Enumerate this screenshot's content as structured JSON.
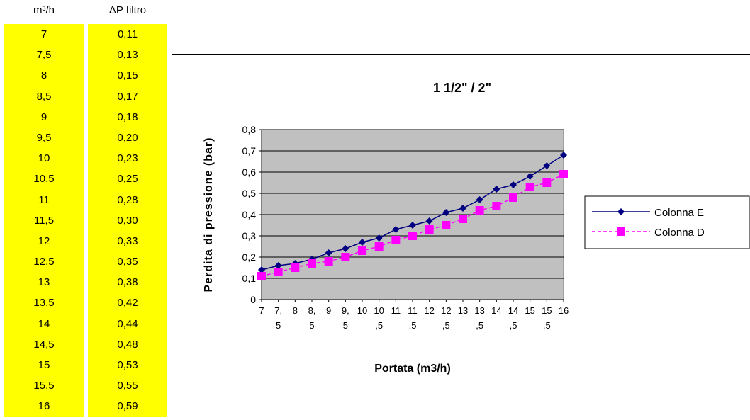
{
  "table": {
    "headers": [
      "m³/h",
      "ΔP filtro"
    ],
    "rows": [
      [
        "7",
        "0,11"
      ],
      [
        "7,5",
        "0,13"
      ],
      [
        "8",
        "0,15"
      ],
      [
        "8,5",
        "0,17"
      ],
      [
        "9",
        "0,18"
      ],
      [
        "9,5",
        "0,20"
      ],
      [
        "10",
        "0,23"
      ],
      [
        "10,5",
        "0,25"
      ],
      [
        "11",
        "0,28"
      ],
      [
        "11,5",
        "0,30"
      ],
      [
        "12",
        "0,33"
      ],
      [
        "12,5",
        "0,35"
      ],
      [
        "13",
        "0,38"
      ],
      [
        "13,5",
        "0,42"
      ],
      [
        "14",
        "0,44"
      ],
      [
        "14,5",
        "0,48"
      ],
      [
        "15",
        "0,53"
      ],
      [
        "15,5",
        "0,55"
      ],
      [
        "16",
        "0,59"
      ]
    ]
  },
  "colors": {
    "cell_bg": "#ffff00",
    "plot_bg": "#c0c0c0",
    "series_e": "#000080",
    "series_d": "#ff00ff"
  },
  "chart_data": {
    "type": "line",
    "title": "1 1/2\" / 2\"",
    "xlabel": "Portata (m3/h)",
    "ylabel": "Perdita di pressione (bar)",
    "ylim": [
      0,
      0.8
    ],
    "yticks": [
      "0",
      "0,1",
      "0,2",
      "0,3",
      "0,4",
      "0,5",
      "0,6",
      "0,7",
      "0,8"
    ],
    "categories": [
      [
        "7"
      ],
      [
        "7,",
        "5"
      ],
      [
        "8"
      ],
      [
        "8,",
        "5"
      ],
      [
        "9"
      ],
      [
        "9,",
        "5"
      ],
      [
        "10"
      ],
      [
        "10",
        ",5"
      ],
      [
        "11"
      ],
      [
        "11",
        ",5"
      ],
      [
        "12"
      ],
      [
        "12",
        ",5"
      ],
      [
        "13"
      ],
      [
        "13",
        ",5"
      ],
      [
        "14"
      ],
      [
        "14",
        ",5"
      ],
      [
        "15"
      ],
      [
        "15",
        ",5"
      ],
      [
        "16"
      ]
    ],
    "x": [
      7,
      7.5,
      8,
      8.5,
      9,
      9.5,
      10,
      10.5,
      11,
      11.5,
      12,
      12.5,
      13,
      13.5,
      14,
      14.5,
      15,
      15.5,
      16
    ],
    "grid": true,
    "legend": "right",
    "series": [
      {
        "name": "Colonna E",
        "marker": "diamond",
        "line": "solid",
        "colorKey": "series_e",
        "values": [
          0.14,
          0.16,
          0.17,
          0.19,
          0.22,
          0.24,
          0.27,
          0.29,
          0.33,
          0.35,
          0.37,
          0.41,
          0.43,
          0.47,
          0.52,
          0.54,
          0.58,
          0.63,
          0.68
        ]
      },
      {
        "name": "Colonna D",
        "marker": "square",
        "line": "dashed",
        "colorKey": "series_d",
        "values": [
          0.11,
          0.13,
          0.15,
          0.17,
          0.18,
          0.2,
          0.23,
          0.25,
          0.28,
          0.3,
          0.33,
          0.35,
          0.38,
          0.42,
          0.44,
          0.48,
          0.53,
          0.55,
          0.59
        ]
      }
    ]
  }
}
